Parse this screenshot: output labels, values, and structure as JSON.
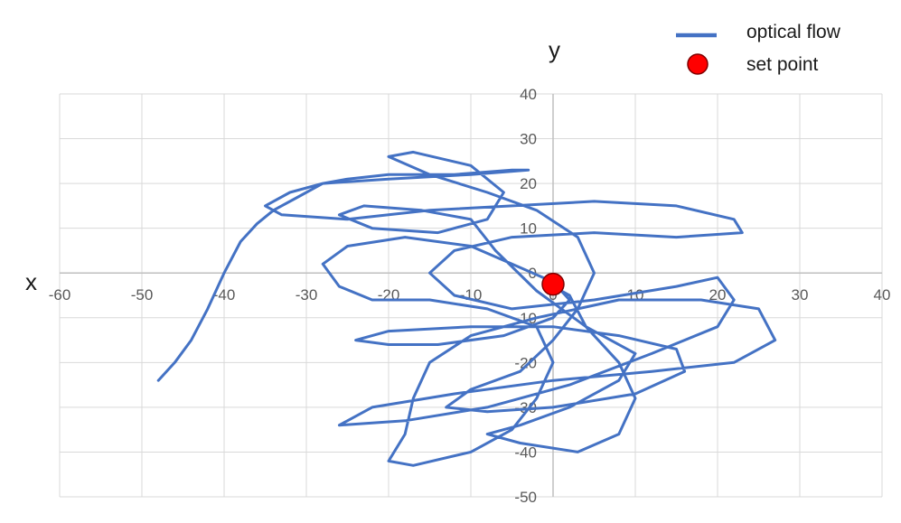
{
  "chart_data": {
    "type": "scatter",
    "xlabel": "x",
    "ylabel": "y",
    "xlim": [
      -60,
      40
    ],
    "ylim": [
      -50,
      40
    ],
    "xticks": [
      -60,
      -50,
      -40,
      -30,
      -20,
      -10,
      0,
      10,
      20,
      30,
      40
    ],
    "yticks": [
      -50,
      -40,
      -30,
      -20,
      -10,
      0,
      10,
      20,
      30,
      40
    ],
    "grid": true,
    "legend_position": "top-right",
    "colors": {
      "optical_flow": "#4472c4",
      "set_point": "#ff0000"
    },
    "series": [
      {
        "name": "optical flow",
        "kind": "line",
        "points": [
          [
            -48,
            -24
          ],
          [
            -46,
            -20
          ],
          [
            -44,
            -15
          ],
          [
            -42,
            -8
          ],
          [
            -40,
            0
          ],
          [
            -38,
            7
          ],
          [
            -36,
            11
          ],
          [
            -34,
            14
          ],
          [
            -31,
            17
          ],
          [
            -28,
            20
          ],
          [
            -25,
            21
          ],
          [
            -20,
            22
          ],
          [
            -12,
            22
          ],
          [
            -5,
            23
          ],
          [
            -3,
            23
          ],
          [
            -10,
            22
          ],
          [
            -20,
            21
          ],
          [
            -28,
            20
          ],
          [
            -32,
            18
          ],
          [
            -35,
            15
          ],
          [
            -33,
            13
          ],
          [
            -25,
            12
          ],
          [
            -15,
            14
          ],
          [
            -5,
            15
          ],
          [
            5,
            16
          ],
          [
            15,
            15
          ],
          [
            22,
            12
          ],
          [
            23,
            9
          ],
          [
            15,
            8
          ],
          [
            5,
            9
          ],
          [
            -5,
            8
          ],
          [
            -12,
            5
          ],
          [
            -15,
            0
          ],
          [
            -12,
            -5
          ],
          [
            -5,
            -8
          ],
          [
            5,
            -6
          ],
          [
            15,
            -3
          ],
          [
            20,
            -1
          ],
          [
            22,
            -6
          ],
          [
            20,
            -12
          ],
          [
            12,
            -18
          ],
          [
            2,
            -25
          ],
          [
            -8,
            -30
          ],
          [
            -18,
            -33
          ],
          [
            -26,
            -34
          ],
          [
            -22,
            -30
          ],
          [
            -12,
            -27
          ],
          [
            0,
            -24
          ],
          [
            12,
            -22
          ],
          [
            22,
            -20
          ],
          [
            27,
            -15
          ],
          [
            25,
            -8
          ],
          [
            18,
            -6
          ],
          [
            8,
            -6
          ],
          [
            -2,
            -10
          ],
          [
            -10,
            -14
          ],
          [
            -15,
            -20
          ],
          [
            -17,
            -28
          ],
          [
            -18,
            -36
          ],
          [
            -20,
            -42
          ],
          [
            -17,
            -43
          ],
          [
            -10,
            -40
          ],
          [
            -5,
            -35
          ],
          [
            -2,
            -28
          ],
          [
            0,
            -20
          ],
          [
            -2,
            -12
          ],
          [
            -8,
            -8
          ],
          [
            -15,
            -6
          ],
          [
            -22,
            -6
          ],
          [
            -26,
            -3
          ],
          [
            -28,
            2
          ],
          [
            -25,
            6
          ],
          [
            -18,
            8
          ],
          [
            -10,
            6
          ],
          [
            -5,
            2
          ],
          [
            0,
            -2
          ],
          [
            2,
            -6
          ],
          [
            0,
            -10
          ],
          [
            -6,
            -14
          ],
          [
            -14,
            -16
          ],
          [
            -20,
            -16
          ],
          [
            -24,
            -15
          ],
          [
            -20,
            -13
          ],
          [
            -10,
            -12
          ],
          [
            0,
            -12
          ],
          [
            8,
            -14
          ],
          [
            15,
            -17
          ],
          [
            16,
            -22
          ],
          [
            10,
            -27
          ],
          [
            0,
            -30
          ],
          [
            -8,
            -31
          ],
          [
            -13,
            -30
          ],
          [
            -10,
            -26
          ],
          [
            -4,
            -22
          ],
          [
            0,
            -15
          ],
          [
            3,
            -8
          ],
          [
            5,
            0
          ],
          [
            3,
            8
          ],
          [
            -2,
            14
          ],
          [
            -8,
            18
          ],
          [
            -15,
            22
          ],
          [
            -20,
            26
          ],
          [
            -17,
            27
          ],
          [
            -10,
            24
          ],
          [
            -6,
            18
          ],
          [
            -8,
            12
          ],
          [
            -14,
            9
          ],
          [
            -22,
            10
          ],
          [
            -26,
            13
          ],
          [
            -23,
            15
          ],
          [
            -16,
            14
          ],
          [
            -10,
            12
          ],
          [
            -7,
            5
          ],
          [
            -2,
            -4
          ],
          [
            4,
            -12
          ],
          [
            10,
            -18
          ],
          [
            8,
            -24
          ],
          [
            2,
            -30
          ],
          [
            -4,
            -34
          ],
          [
            -8,
            -36
          ],
          [
            -4,
            -38
          ],
          [
            3,
            -40
          ],
          [
            8,
            -36
          ],
          [
            10,
            -28
          ],
          [
            8,
            -20
          ],
          [
            4,
            -12
          ],
          [
            2,
            -5
          ],
          [
            0,
            -3
          ]
        ]
      },
      {
        "name": "set point",
        "kind": "marker",
        "points": [
          [
            0,
            -2.5
          ]
        ]
      }
    ]
  }
}
